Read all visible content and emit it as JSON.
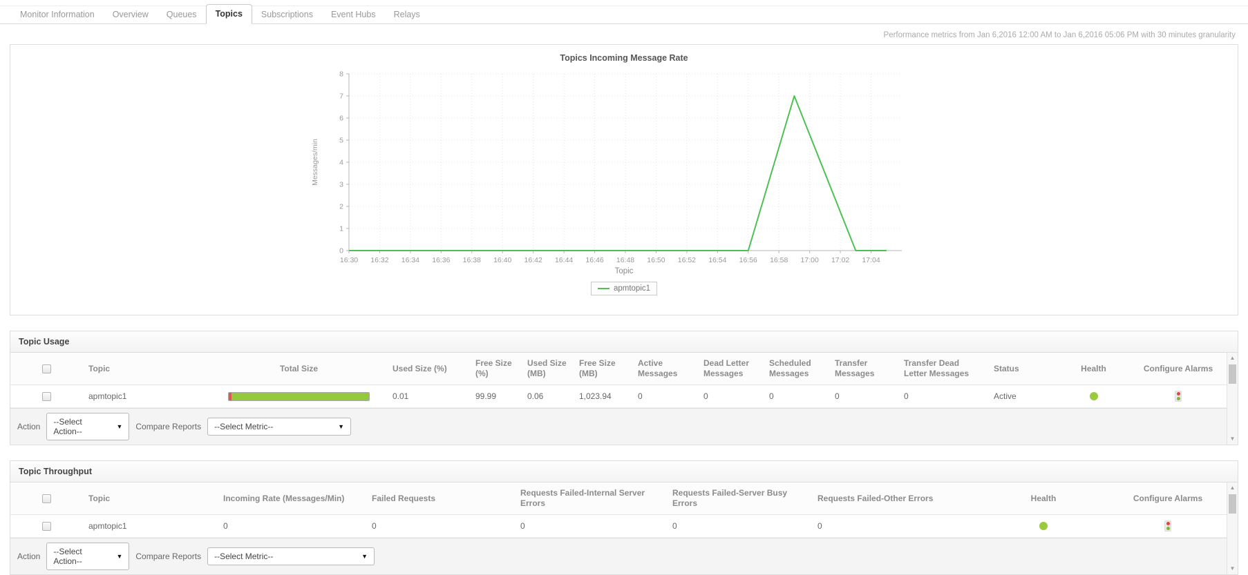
{
  "tabs": [
    {
      "label": "Monitor Information",
      "active": false
    },
    {
      "label": "Overview",
      "active": false
    },
    {
      "label": "Queues",
      "active": false
    },
    {
      "label": "Topics",
      "active": true
    },
    {
      "label": "Subscriptions",
      "active": false
    },
    {
      "label": "Event Hubs",
      "active": false
    },
    {
      "label": "Relays",
      "active": false
    }
  ],
  "header": {
    "metrics_note": "Performance metrics from Jan 6,2016 12:00 AM to Jan 6,2016 05:06 PM with 30 minutes granularity"
  },
  "chart_data": {
    "type": "line",
    "title": "Topics Incoming Message Rate",
    "xlabel": "Topic",
    "ylabel": "Messages/min",
    "ylim": [
      0,
      8
    ],
    "yticks": [
      0,
      1,
      2,
      3,
      4,
      5,
      6,
      7,
      8
    ],
    "xticks": [
      "16:30",
      "16:32",
      "16:34",
      "16:36",
      "16:38",
      "16:40",
      "16:42",
      "16:44",
      "16:46",
      "16:48",
      "16:50",
      "16:52",
      "16:54",
      "16:56",
      "16:58",
      "17:00",
      "17:02",
      "17:04"
    ],
    "grid": true,
    "legend_position": "bottom",
    "series": [
      {
        "name": "apmtopic1",
        "points": [
          {
            "x": "16:30",
            "y": 0
          },
          {
            "x": "16:32",
            "y": 0
          },
          {
            "x": "16:34",
            "y": 0
          },
          {
            "x": "16:36",
            "y": 0
          },
          {
            "x": "16:38",
            "y": 0
          },
          {
            "x": "16:40",
            "y": 0
          },
          {
            "x": "16:42",
            "y": 0
          },
          {
            "x": "16:44",
            "y": 0
          },
          {
            "x": "16:46",
            "y": 0
          },
          {
            "x": "16:48",
            "y": 0
          },
          {
            "x": "16:50",
            "y": 0
          },
          {
            "x": "16:52",
            "y": 0
          },
          {
            "x": "16:54",
            "y": 0
          },
          {
            "x": "16:56",
            "y": 0
          },
          {
            "x": "16:59",
            "y": 7
          },
          {
            "x": "17:03",
            "y": 0
          },
          {
            "x": "17:05",
            "y": 0
          }
        ]
      }
    ]
  },
  "topic_usage": {
    "title": "Topic Usage",
    "columns": [
      "Topic",
      "Total Size",
      "Used Size (%)",
      "Free Size (%)",
      "Used Size (MB)",
      "Free Size (MB)",
      "Active Messages",
      "Dead Letter Messages",
      "Scheduled Messages",
      "Transfer Messages",
      "Transfer Dead Letter Messages",
      "Status",
      "Health",
      "Configure Alarms"
    ],
    "row": {
      "topic": "apmtopic1",
      "used_size_pct": "0.01",
      "free_size_pct": "99.99",
      "used_size_mb": "0.06",
      "free_size_mb": "1,023.94",
      "active_messages": "0",
      "dead_letter_messages": "0",
      "scheduled_messages": "0",
      "transfer_messages": "0",
      "transfer_dead_letter_messages": "0",
      "status": "Active",
      "health": "ok",
      "bar_used_pct": 2,
      "bar_free_pct": 98
    },
    "action_label": "Action",
    "action_value": "--Select Action--",
    "compare_label": "Compare Reports",
    "compare_value": "--Select Metric--"
  },
  "topic_throughput": {
    "title": "Topic Throughput",
    "columns": [
      "Topic",
      "Incoming Rate (Messages/Min)",
      "Failed Requests",
      "Requests Failed-Internal Server Errors",
      "Requests Failed-Server Busy Errors",
      "Requests Failed-Other Errors",
      "Health",
      "Configure Alarms"
    ],
    "row": {
      "topic": "apmtopic1",
      "incoming_rate": "0",
      "failed_requests": "0",
      "internal_server_errors": "0",
      "server_busy_errors": "0",
      "other_errors": "0",
      "health": "ok"
    },
    "action_label": "Action",
    "action_value": "--Select Action--",
    "compare_label": "Compare Reports",
    "compare_value": "--Select Metric--"
  },
  "colors": {
    "series_line": "#4cc152",
    "health_ok": "#9bca3c",
    "bar_used": "#e0574b",
    "bar_free": "#94c83d",
    "alarm_red": "#e0473c",
    "alarm_green": "#7fb636",
    "grid": "#e4e4e4",
    "axis": "#b5b5b5"
  }
}
